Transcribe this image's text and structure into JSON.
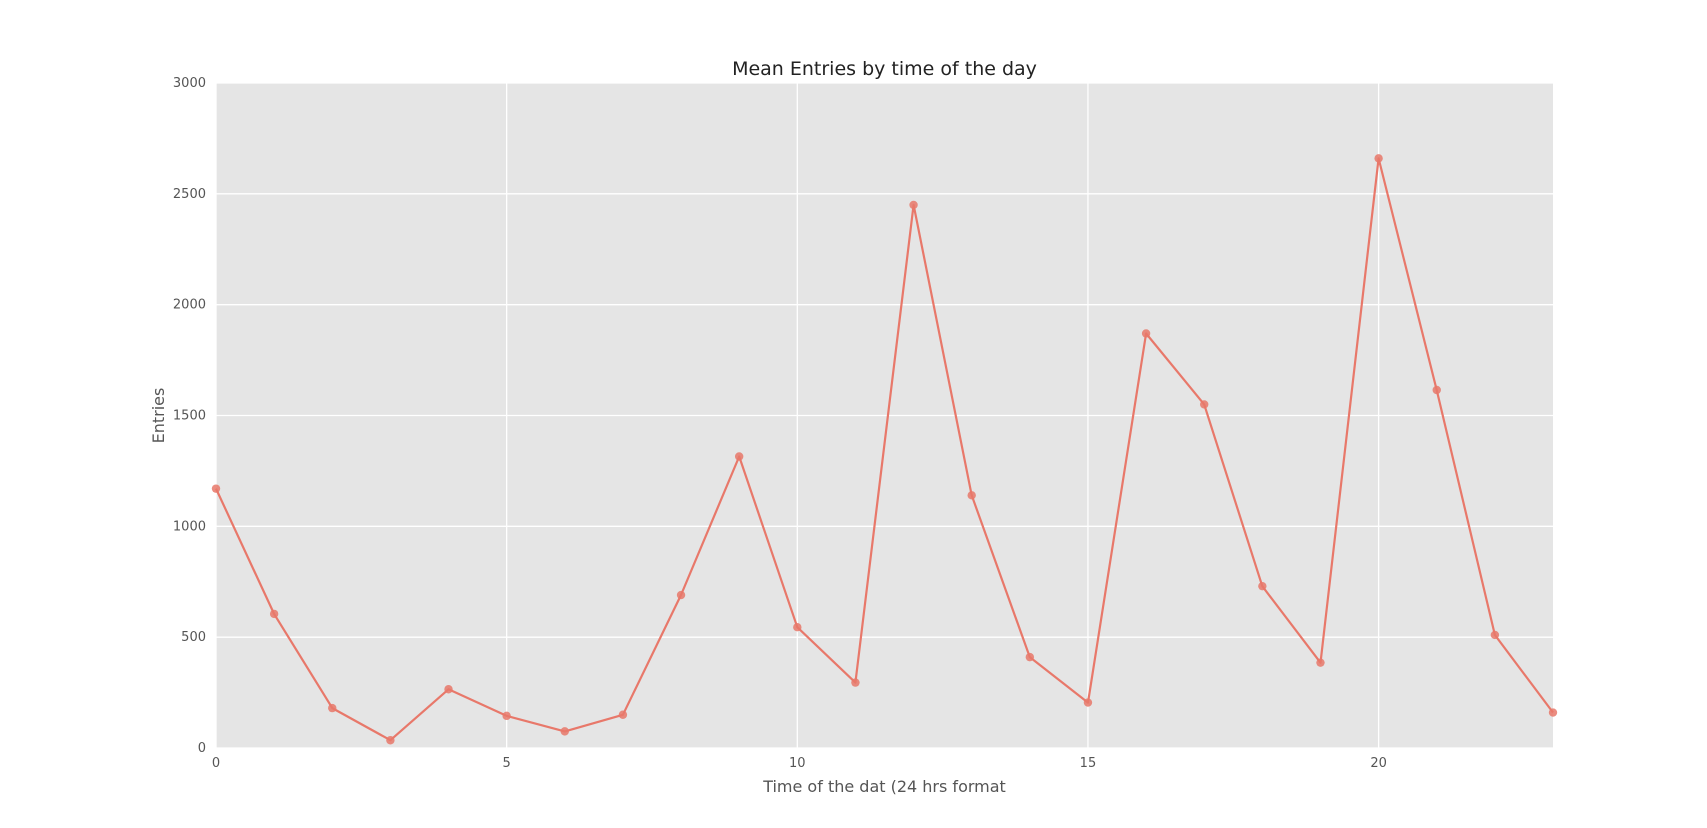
{
  "chart_data": {
    "type": "line",
    "title": "Mean Entries by time of the day",
    "xlabel": "Time of the dat (24 hrs format",
    "ylabel": "Entries",
    "xlim": [
      0,
      23
    ],
    "ylim": [
      0,
      3000
    ],
    "x_ticks": [
      0,
      5,
      10,
      15,
      20
    ],
    "y_ticks": [
      0,
      500,
      1000,
      1500,
      2000,
      2500,
      3000
    ],
    "grid": true,
    "legend": "none",
    "series": [
      {
        "x": [
          0,
          1,
          2,
          3,
          4,
          5,
          6,
          7,
          8,
          9,
          10,
          11,
          12,
          13,
          14,
          15,
          16,
          17,
          18,
          19,
          20,
          21,
          22,
          23
        ],
        "values": [
          1170,
          605,
          180,
          35,
          265,
          145,
          75,
          150,
          690,
          1315,
          545,
          295,
          2450,
          1140,
          410,
          205,
          1870,
          1550,
          730,
          385,
          2660,
          1615,
          510,
          160
        ],
        "color": "#e8786a"
      }
    ],
    "colors": {
      "plot_background": "#e5e5e5",
      "grid": "#ffffff",
      "line": "#e8786a",
      "marker": "#e8786a"
    }
  }
}
